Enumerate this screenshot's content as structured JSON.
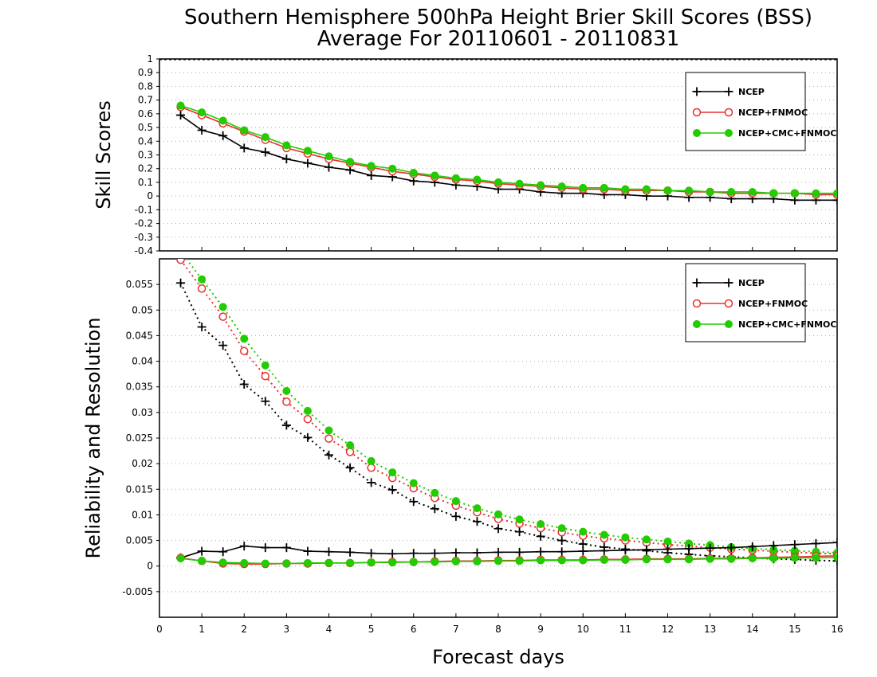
{
  "title": "Southern Hemisphere 500hPa Height Brier Skill Scores (BSS)",
  "subtitle": "Average For 20110601 - 20110831",
  "colors": {
    "NCEP": "#000000",
    "NCEP+FNMOC": "#e83030",
    "NCEP+CMC+FNMOC": "#22cc00",
    "grid": "#aaaaaa"
  },
  "chart_data": [
    {
      "type": "line",
      "ylabel": "Skill Scores",
      "xlabel": "",
      "xlim": [
        0,
        16
      ],
      "ylim": [
        -0.4,
        1
      ],
      "x_ticks": [
        0,
        1,
        2,
        3,
        4,
        5,
        6,
        7,
        8,
        9,
        10,
        11,
        12,
        13,
        14,
        15,
        16
      ],
      "y_ticks": [
        -0.4,
        -0.3,
        -0.2,
        -0.1,
        0,
        0.1,
        0.2,
        0.3,
        0.4,
        0.5,
        0.6,
        0.7,
        0.8,
        0.9,
        1
      ],
      "y_tick_labels": [
        "-0.4",
        "-0.3",
        "-0.2",
        "-0.1",
        "0",
        "0.1",
        "0.2",
        "0.3",
        "0.4",
        "0.5",
        "0.6",
        "0.7",
        "0.8",
        "0.9",
        "1"
      ],
      "grid": "horizontal dotted",
      "legend": {
        "placement": "top-right",
        "entries": [
          "NCEP",
          "NCEP+FNMOC",
          "NCEP+CMC+FNMOC"
        ]
      },
      "x": [
        0.5,
        1,
        1.5,
        2,
        2.5,
        3,
        3.5,
        4,
        4.5,
        5,
        5.5,
        6,
        6.5,
        7,
        7.5,
        8,
        8.5,
        9,
        9.5,
        10,
        10.5,
        11,
        11.5,
        12,
        12.5,
        13,
        13.5,
        14,
        14.5,
        15,
        15.5,
        16
      ],
      "series": [
        {
          "name": "NCEP",
          "marker": "plus",
          "style": "solid",
          "values": [
            0.59,
            0.48,
            0.44,
            0.35,
            0.32,
            0.27,
            0.24,
            0.21,
            0.19,
            0.15,
            0.14,
            0.11,
            0.1,
            0.08,
            0.07,
            0.05,
            0.05,
            0.03,
            0.02,
            0.02,
            0.01,
            0.01,
            0.0,
            0.0,
            -0.01,
            -0.01,
            -0.02,
            -0.02,
            -0.02,
            -0.03,
            -0.03,
            -0.03
          ]
        },
        {
          "name": "NCEP+FNMOC",
          "marker": "circle",
          "style": "solid",
          "values": [
            0.65,
            0.59,
            0.53,
            0.47,
            0.41,
            0.35,
            0.31,
            0.27,
            0.24,
            0.21,
            0.18,
            0.16,
            0.14,
            0.12,
            0.11,
            0.09,
            0.08,
            0.07,
            0.06,
            0.05,
            0.05,
            0.04,
            0.04,
            0.04,
            0.03,
            0.03,
            0.02,
            0.02,
            0.02,
            0.02,
            0.01,
            0.01
          ]
        },
        {
          "name": "NCEP+CMC+FNMOC",
          "marker": "dot",
          "style": "solid",
          "values": [
            0.66,
            0.61,
            0.55,
            0.48,
            0.43,
            0.37,
            0.33,
            0.29,
            0.25,
            0.22,
            0.2,
            0.17,
            0.15,
            0.13,
            0.12,
            0.1,
            0.09,
            0.08,
            0.07,
            0.06,
            0.06,
            0.05,
            0.05,
            0.04,
            0.04,
            0.03,
            0.03,
            0.03,
            0.02,
            0.02,
            0.02,
            0.02
          ]
        }
      ]
    },
    {
      "type": "line",
      "ylabel": "Reliability and Resolution",
      "xlabel": "Forecast days",
      "xlim": [
        0,
        16
      ],
      "ylim": [
        -0.01,
        0.06
      ],
      "x_ticks": [
        0,
        1,
        2,
        3,
        4,
        5,
        6,
        7,
        8,
        9,
        10,
        11,
        12,
        13,
        14,
        15,
        16
      ],
      "y_ticks": [
        -0.005,
        0,
        0.005,
        0.01,
        0.015,
        0.02,
        0.025,
        0.03,
        0.035,
        0.04,
        0.045,
        0.05,
        0.055
      ],
      "y_tick_labels": [
        "-0.005",
        "0",
        "0.005",
        "0.01",
        "0.015",
        "0.02",
        "0.025",
        "0.03",
        "0.035",
        "0.04",
        "0.045",
        "0.05",
        "0.055"
      ],
      "grid": "horizontal dotted",
      "legend": {
        "placement": "top-right",
        "entries": [
          "NCEP",
          "NCEP+FNMOC",
          "NCEP+CMC+FNMOC"
        ]
      },
      "x": [
        0.5,
        1,
        1.5,
        2,
        2.5,
        3,
        3.5,
        4,
        4.5,
        5,
        5.5,
        6,
        6.5,
        7,
        7.5,
        8,
        8.5,
        9,
        9.5,
        10,
        10.5,
        11,
        11.5,
        12,
        12.5,
        13,
        13.5,
        14,
        14.5,
        15,
        15.5,
        16
      ],
      "series": [
        {
          "name": "NCEP",
          "metric": "resolution",
          "marker": "plus",
          "style": "dotted",
          "values": [
            0.0553,
            0.0467,
            0.0431,
            0.0355,
            0.0322,
            0.0275,
            0.0251,
            0.0217,
            0.0192,
            0.0163,
            0.0149,
            0.0126,
            0.0112,
            0.0097,
            0.0087,
            0.0073,
            0.0067,
            0.0058,
            0.005,
            0.0043,
            0.0037,
            0.0033,
            0.003,
            0.0026,
            0.0023,
            0.002,
            0.0018,
            0.0016,
            0.0014,
            0.0013,
            0.0011,
            0.001
          ]
        },
        {
          "name": "NCEP+FNMOC",
          "metric": "resolution",
          "marker": "circle",
          "style": "dotted",
          "values": [
            0.0598,
            0.0542,
            0.0487,
            0.042,
            0.0371,
            0.0321,
            0.0287,
            0.0249,
            0.0223,
            0.0192,
            0.0172,
            0.0152,
            0.0133,
            0.0118,
            0.0105,
            0.0092,
            0.0083,
            0.0074,
            0.0066,
            0.0059,
            0.0054,
            0.005,
            0.0046,
            0.0042,
            0.0039,
            0.0036,
            0.0033,
            0.0031,
            0.0029,
            0.0027,
            0.0025,
            0.0024
          ]
        },
        {
          "name": "NCEP+CMC+FNMOC",
          "metric": "resolution",
          "marker": "dot",
          "style": "dotted",
          "values": [
            0.0615,
            0.056,
            0.0506,
            0.0444,
            0.0392,
            0.0342,
            0.0303,
            0.0265,
            0.0236,
            0.0205,
            0.0183,
            0.0162,
            0.0143,
            0.0127,
            0.0113,
            0.0101,
            0.0091,
            0.0082,
            0.0074,
            0.0067,
            0.0061,
            0.0056,
            0.0052,
            0.0048,
            0.0044,
            0.0041,
            0.0037,
            0.0034,
            0.0032,
            0.003,
            0.0028,
            0.0026
          ]
        },
        {
          "name": "NCEP",
          "metric": "reliability",
          "marker": "plus",
          "style": "solid",
          "values": [
            0.0016,
            0.0029,
            0.0028,
            0.0039,
            0.0036,
            0.0036,
            0.0029,
            0.0028,
            0.0027,
            0.0025,
            0.0024,
            0.0025,
            0.0025,
            0.0026,
            0.0026,
            0.0027,
            0.0027,
            0.0028,
            0.0028,
            0.0029,
            0.003,
            0.0031,
            0.0032,
            0.0033,
            0.0034,
            0.0035,
            0.0036,
            0.0038,
            0.004,
            0.0042,
            0.0044,
            0.0046
          ]
        },
        {
          "name": "NCEP+FNMOC",
          "metric": "reliability",
          "marker": "circle",
          "style": "solid",
          "values": [
            0.0016,
            0.001,
            0.0005,
            0.0004,
            0.0004,
            0.0005,
            0.0005,
            0.0006,
            0.0006,
            0.0007,
            0.0008,
            0.0008,
            0.0009,
            0.001,
            0.001,
            0.0011,
            0.0011,
            0.0012,
            0.0012,
            0.0012,
            0.0013,
            0.0013,
            0.0014,
            0.0014,
            0.0014,
            0.0015,
            0.0015,
            0.0016,
            0.0017,
            0.0018,
            0.0019,
            0.002
          ]
        },
        {
          "name": "NCEP+CMC+FNMOC",
          "metric": "reliability",
          "marker": "dot",
          "style": "solid",
          "values": [
            0.0015,
            0.001,
            0.0007,
            0.0006,
            0.0005,
            0.0005,
            0.0006,
            0.0006,
            0.0006,
            0.0007,
            0.0007,
            0.0008,
            0.0008,
            0.0009,
            0.0009,
            0.001,
            0.001,
            0.0011,
            0.0011,
            0.0011,
            0.0012,
            0.0012,
            0.0013,
            0.0013,
            0.0013,
            0.0014,
            0.0014,
            0.0015,
            0.0015,
            0.0016,
            0.0016,
            0.0017
          ]
        }
      ]
    }
  ]
}
